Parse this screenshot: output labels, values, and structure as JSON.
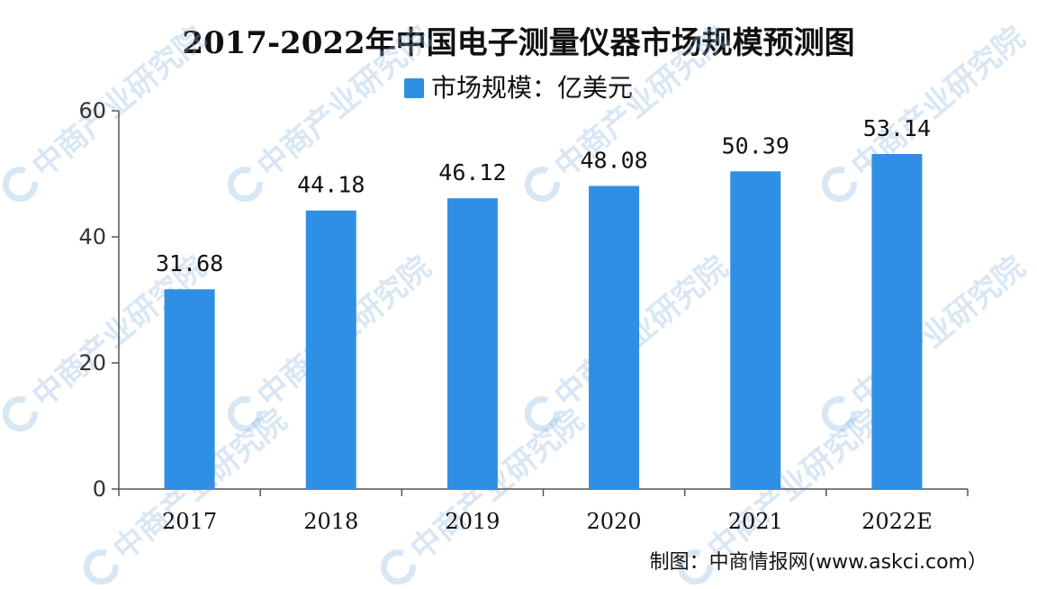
{
  "chart_data": {
    "type": "bar",
    "title": "2017-2022年中国电子测量仪器市场规模预测图",
    "series": [
      {
        "name": "市场规模：亿美元",
        "values": [
          31.68,
          44.18,
          46.12,
          48.08,
          50.39,
          53.14
        ]
      }
    ],
    "categories": [
      "2017",
      "2018",
      "2019",
      "2020",
      "2021",
      "2022E"
    ],
    "data_labels": [
      "31.68",
      "44.18",
      "46.12",
      "48.08",
      "50.39",
      "53.14"
    ],
    "y_ticks": [
      "0",
      "20",
      "40",
      "60"
    ],
    "ylim": [
      0,
      60
    ],
    "xlabel": "",
    "ylabel": "",
    "grid": false,
    "legend_position": "top-center",
    "bar_color": "#2f8fe4"
  },
  "source_text": "制图：中商情报网(www.askci.com）",
  "watermark_text": "中商产业研究院"
}
